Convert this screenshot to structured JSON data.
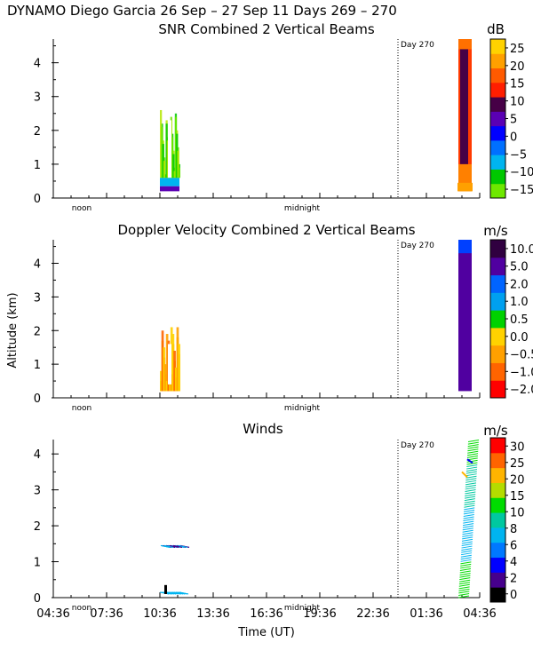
{
  "page_title": "DYNAMO Diego Garcia  26 Sep – 27 Sep 11 Days 269 – 270",
  "time_axis": {
    "label": "Time (UT)",
    "ticks": [
      "04:36",
      "07:36",
      "10:36",
      "13:36",
      "16:36",
      "19:36",
      "22:36",
      "01:36",
      "04:36"
    ],
    "range_hours": [
      0,
      24
    ],
    "day_marker_hours": 19.4,
    "noon_label": "noon",
    "midnight_label": "midnight",
    "day_label": "Day 270"
  },
  "altitude_axis": {
    "label": "Altitude (km)",
    "ticks": [
      "0",
      "1",
      "2",
      "3",
      "4"
    ],
    "range_km": [
      0,
      4.7
    ]
  },
  "chart_data": [
    {
      "type": "heatmap",
      "title": "SNR Combined 2 Vertical Beams",
      "colorbar_unit": "dB",
      "colorbar_ticks": [
        "25",
        "20",
        "15",
        "10",
        "5",
        "0",
        "−5",
        "−10",
        "−15"
      ],
      "colorbar_range": [
        -17,
        30
      ],
      "colorbar_colors": [
        "#6ee800",
        "#00c800",
        "#00b4f0",
        "#0070ff",
        "#0000ff",
        "#5a00b4",
        "#460046",
        "#ff1e00",
        "#ff5a00",
        "#ffa000",
        "#ffd200"
      ],
      "ylabel": "",
      "ylim": [
        0,
        4.7
      ],
      "xlim_hours": [
        0,
        24
      ],
      "regions": [
        {
          "name": "afternoon-cloud",
          "x": [
            6.0,
            7.1
          ],
          "alt": [
            0.2,
            2.7
          ],
          "value_db": -12
        },
        {
          "name": "morning-rain",
          "x": [
            22.8,
            23.55
          ],
          "alt": [
            0.2,
            4.7
          ],
          "value_db": 12
        }
      ]
    },
    {
      "type": "heatmap",
      "title": "Doppler Velocity Combined 2 Vertical Beams",
      "colorbar_unit": "m/s",
      "colorbar_ticks": [
        "10.0",
        "5.0",
        "2.0",
        "1.0",
        "0.5",
        "0.0",
        "−0.5",
        "−1.0",
        "−2.0"
      ],
      "colorbar_colors": [
        "#ff0000",
        "#ff6400",
        "#ffa000",
        "#ffd200",
        "#00d200",
        "#00a0f0",
        "#0064ff",
        "#5000a0",
        "#300040"
      ],
      "ylabel": "Altitude (km)",
      "ylim": [
        0,
        4.7
      ],
      "xlim_hours": [
        0,
        24
      ],
      "regions": [
        {
          "name": "afternoon-cloud",
          "x": [
            6.0,
            7.1
          ],
          "alt": [
            0.2,
            2.3
          ],
          "value_ms": -0.5
        },
        {
          "name": "morning-rain",
          "x": [
            22.8,
            23.55
          ],
          "alt": [
            0.2,
            4.7
          ],
          "value_ms": 5.0
        }
      ]
    },
    {
      "type": "scatter",
      "title": "Winds",
      "colorbar_unit": "m/s",
      "colorbar_ticks": [
        "30",
        "25",
        "20",
        "15",
        "10",
        "8",
        "6",
        "4",
        "2",
        "0"
      ],
      "colorbar_colors": [
        "#000000",
        "#46008c",
        "#0000ff",
        "#0078ff",
        "#00b4f0",
        "#00c8a0",
        "#00dc00",
        "#b4dc00",
        "#ffb400",
        "#ff6400",
        "#ff0000"
      ],
      "ylabel": "",
      "ylim": [
        0,
        4.4
      ],
      "xlim_hours": [
        0,
        24
      ],
      "regions": [
        {
          "name": "afternoon-barbs",
          "x": [
            6.0,
            7.2
          ],
          "alt": [
            0.1,
            2.8
          ],
          "speed_ms": 8
        },
        {
          "name": "morning-barbs",
          "x": [
            22.8,
            23.6
          ],
          "alt": [
            0.0,
            4.4
          ],
          "speed_ms": 14
        }
      ]
    }
  ]
}
